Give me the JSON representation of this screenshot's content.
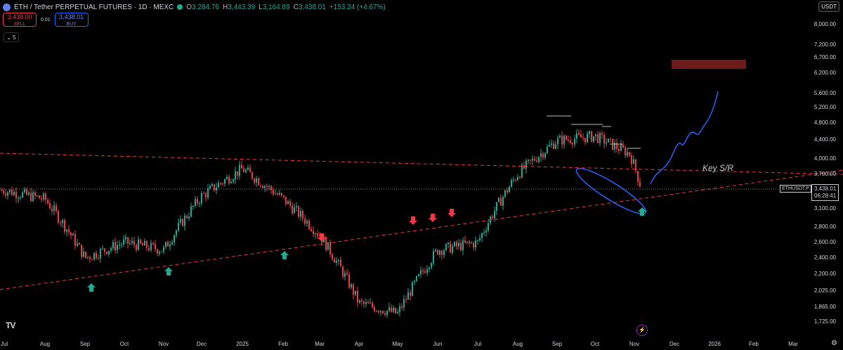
{
  "header": {
    "symbol": "ETH / Tether PERPETUAL FUTURES · 1D · MEXC",
    "open_label": "O",
    "open": "3,284.76",
    "high_label": "H",
    "high": "3,443.39",
    "low_label": "L",
    "low": "3,164.89",
    "close_label": "C",
    "close": "3,438.01",
    "change": "+153.24 (+4.67%)"
  },
  "trade": {
    "sell_price": "3,438.00",
    "sell_label": "SELL",
    "spread": "0.01",
    "buy_price": "3,438.01",
    "buy_label": "BUY"
  },
  "indicators_count": "5",
  "currency": "USDT",
  "logo": "TV",
  "price_axis": [
    "8,000.00",
    "7,200.00",
    "6,700.00",
    "6,200.00",
    "5,600.00",
    "5,200.00",
    "4,800.00",
    "4,400.00",
    "4,000.00",
    "3,700.00",
    "3,100.00",
    "2,800.00",
    "2,600.00",
    "2,400.00",
    "2,200.00",
    "2,025.00",
    "1,865.00",
    "1,725.00"
  ],
  "time_axis": [
    "Jul",
    "Aug",
    "Sep",
    "Oct",
    "Nov",
    "Dec",
    "2025",
    "Feb",
    "Mar",
    "Apr",
    "May",
    "Jun",
    "Jul",
    "Aug",
    "Sep",
    "Oct",
    "Nov",
    "Dec",
    "2026",
    "Feb",
    "Mar"
  ],
  "last_symbol": "ETHUSDT.P",
  "last_price": "3,438.01",
  "countdown": "06:28:41",
  "annotation": "Key S/R",
  "colors": {
    "up": "#22ab94",
    "down": "#f23645",
    "trend": "#f23645",
    "projection": "#2962ff",
    "zone": "#6d1b1b"
  },
  "chart_data": {
    "type": "line",
    "title": "ETH / Tether PERPETUAL FUTURES · 1D · MEXC",
    "scale": "log",
    "ylim": [
      1650,
      9000
    ],
    "x": [
      "Jul",
      "Aug",
      "Sep",
      "Oct",
      "Nov",
      "Dec",
      "2025",
      "Feb",
      "Mar",
      "Apr",
      "May",
      "Jun",
      "Jul",
      "Aug",
      "Sep",
      "Oct",
      "Nov",
      "Nov"
    ],
    "series": [
      {
        "values": [
          3400,
          3250,
          2400,
          2600,
          2500,
          3300,
          3800,
          3250,
          2700,
          1900,
          1800,
          2500,
          2600,
          3700,
          4400,
          4500,
          4100,
          3438
        ]
      }
    ],
    "highlights": [
      {
        "type": "resistance-zone",
        "from": 6300,
        "to": 6600
      }
    ],
    "legend": "none",
    "grid": false
  }
}
